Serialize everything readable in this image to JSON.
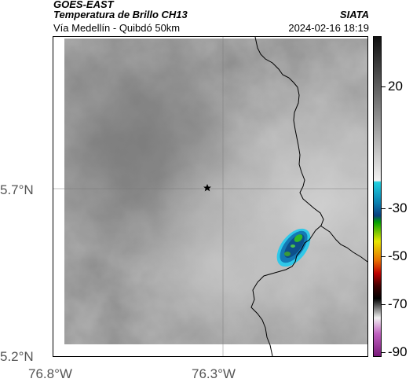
{
  "header": {
    "satellite": "GOES-EAST",
    "product": "Temperatura de Brillo CH13",
    "region": "Vía Medellín - Quibdó 50km",
    "agency": "SIATA",
    "datetime": "2024-02-16 18:19"
  },
  "axes": {
    "lat_ticks": [
      "5.7°N",
      "5.2°N"
    ],
    "lon_ticks": [
      "76.8°W",
      "76.3°W"
    ]
  },
  "colorbar": {
    "ticks": [
      "20",
      "-30",
      "-50",
      "-70",
      "-90"
    ]
  },
  "colors": {
    "storm_core": "#2fb82a",
    "storm_mid": "#1478b4",
    "storm_edge": "#30c8e8",
    "border_line": "#000000"
  },
  "icons": {
    "city_marker": "star-icon"
  }
}
